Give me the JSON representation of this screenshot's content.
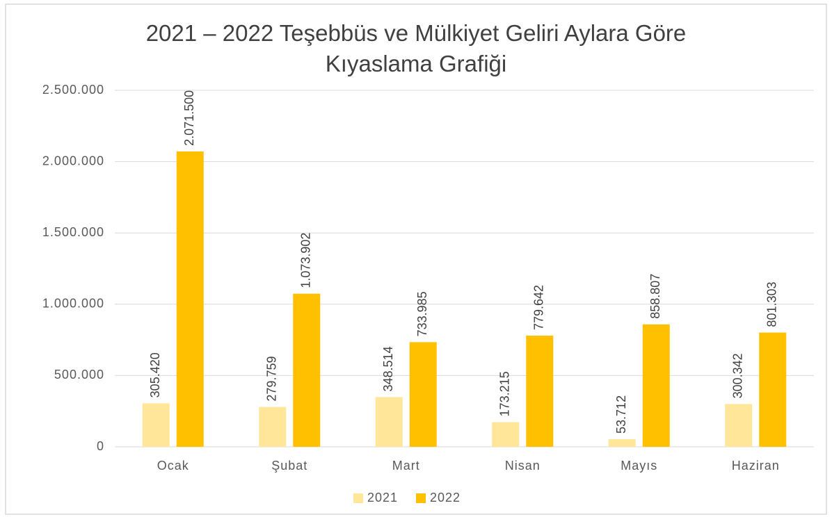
{
  "chart_data": {
    "type": "bar",
    "title": "2021 – 2022 Teşebbüs ve Mülkiyet Geliri Aylara Göre Kıyaslama Grafiği",
    "categories": [
      "Ocak",
      "Şubat",
      "Mart",
      "Nisan",
      "Mayıs",
      "Haziran"
    ],
    "series": [
      {
        "name": "2021",
        "color": "#ffe699",
        "values": [
          305420,
          279759,
          348514,
          173215,
          53712,
          300342
        ],
        "value_labels": [
          "305.420",
          "279.759",
          "348.514",
          "173.215",
          "53.712",
          "300.342"
        ]
      },
      {
        "name": "2022",
        "color": "#ffc000",
        "values": [
          2071500,
          1073902,
          733985,
          779642,
          858807,
          801303
        ],
        "value_labels": [
          "2.071.500",
          "1.073.902",
          "733.985",
          "779.642",
          "858.807",
          "801.303"
        ]
      }
    ],
    "ylim": [
      0,
      2500000
    ],
    "yticks": [
      0,
      {
        "value": 500000,
        "label": "500.000"
      },
      {
        "value": 1000000,
        "label": "1.000.000"
      },
      {
        "value": 1500000,
        "label": "1.500.000"
      },
      {
        "value": 2000000,
        "label": "2.000.000"
      },
      {
        "value": 2500000,
        "label": "2.500.000"
      }
    ],
    "grid": true,
    "legend": "bottom"
  }
}
